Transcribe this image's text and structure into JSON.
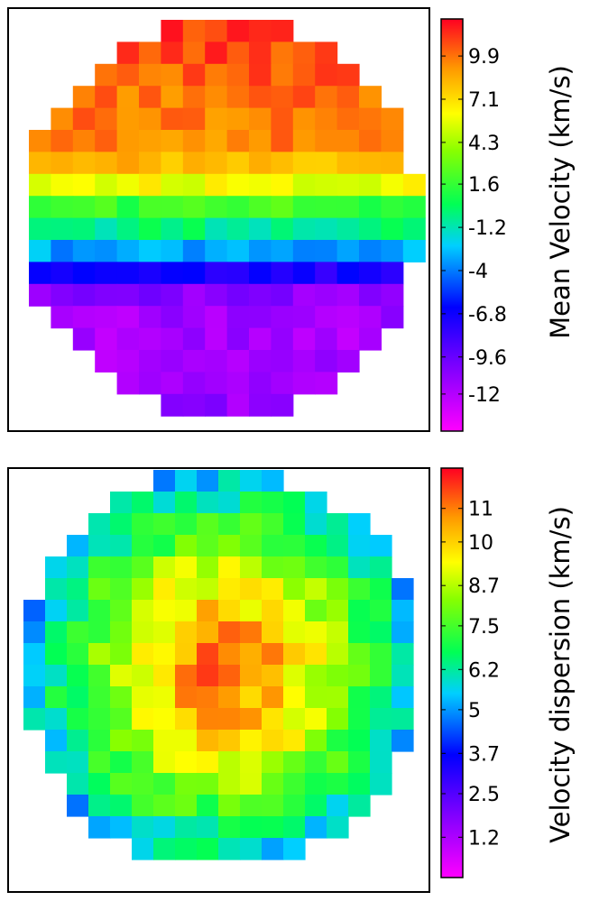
{
  "chart_data": [
    {
      "type": "heatmap",
      "title": "",
      "xlabel": "",
      "ylabel": "",
      "colorbar": {
        "label": "Mean Velocity (km/s)",
        "ticks": [
          "9.9",
          "7.1",
          "4.3",
          "1.6",
          "-1.2",
          "-4",
          "-6.8",
          "-9.6",
          "-12"
        ],
        "tick_values": [
          9.9,
          7.1,
          4.3,
          1.6,
          -1.2,
          -4,
          -6.8,
          -9.6,
          -12
        ],
        "range": [
          -14.4,
          12.3
        ],
        "colormap": "gist_rainbow"
      },
      "grid_size": [
        18,
        18
      ],
      "aperture": "circular",
      "gradient": "top-to-bottom",
      "row_profile": [
        11.0,
        10.8,
        10.3,
        9.9,
        9.8,
        9.5,
        8.0,
        6.0,
        1.8,
        -0.4,
        -3.2,
        -7.2,
        -10.6,
        -11.4,
        -11.6,
        -11.8,
        -11.4,
        -11.2
      ],
      "cell_variation": 1.0
    },
    {
      "type": "heatmap",
      "title": "",
      "xlabel": "",
      "ylabel": "",
      "colorbar": {
        "label": "Velocity dispersion (km/s)",
        "ticks": [
          "11",
          "10",
          "8.7",
          "7.5",
          "6.2",
          "5",
          "3.7",
          "2.5",
          "1.2"
        ],
        "tick_values": [
          11,
          10,
          8.7,
          7.5,
          6.2,
          5,
          3.7,
          2.5,
          1.2
        ],
        "range": [
          0,
          12.2
        ],
        "colormap": "gist_rainbow"
      },
      "grid_size": [
        18,
        18
      ],
      "aperture": "circular",
      "gradient": "centrally-peaked",
      "center_value": 11.4,
      "edge_value": 5.2,
      "cell_variation": 0.8
    }
  ]
}
